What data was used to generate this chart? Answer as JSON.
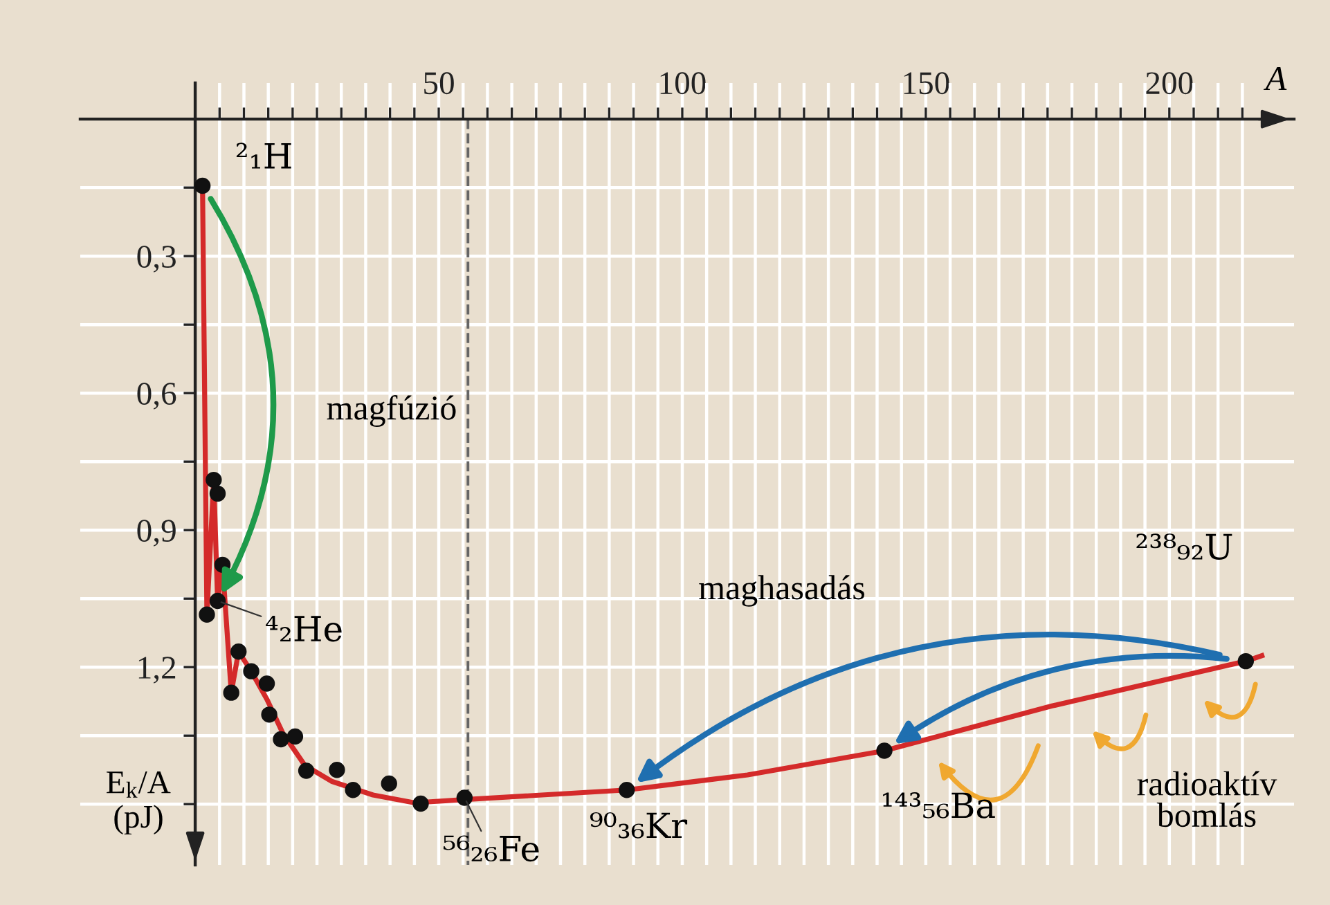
{
  "chart_data": {
    "type": "line",
    "xlabel": "A",
    "ylabel": "E$_{k}$/A\n(pJ)",
    "xlim": [
      -23.6,
      225.6
    ],
    "ylim": [
      1.633,
      -0.079
    ],
    "xticks": [
      {
        "value": 5,
        "label": null
      },
      {
        "value": 10,
        "label": null
      },
      {
        "value": 15,
        "label": null
      },
      {
        "value": 20,
        "label": null
      },
      {
        "value": 25,
        "label": null
      },
      {
        "value": 30,
        "label": null
      },
      {
        "value": 35,
        "label": null
      },
      {
        "value": 40,
        "label": null
      },
      {
        "value": 45,
        "label": null
      },
      50,
      {
        "value": 55,
        "label": null
      },
      {
        "value": 60,
        "label": null
      },
      {
        "value": 65,
        "label": null
      },
      {
        "value": 70,
        "label": null
      },
      {
        "value": 75,
        "label": null
      },
      {
        "value": 80,
        "label": null
      },
      {
        "value": 85,
        "label": null
      },
      {
        "value": 90,
        "label": null
      },
      {
        "value": 95,
        "label": null
      },
      100,
      {
        "value": 105,
        "label": null
      },
      {
        "value": 110,
        "label": null
      },
      {
        "value": 115,
        "label": null
      },
      {
        "value": 120,
        "label": null
      },
      {
        "value": 125,
        "label": null
      },
      {
        "value": 130,
        "label": null
      },
      {
        "value": 135,
        "label": null
      },
      {
        "value": 140,
        "label": null
      },
      {
        "value": 145,
        "label": null
      },
      150,
      {
        "value": 155,
        "label": null
      },
      {
        "value": 160,
        "label": null
      },
      {
        "value": 165,
        "label": null
      },
      {
        "value": 170,
        "label": null
      },
      {
        "value": 175,
        "label": null
      },
      {
        "value": 180,
        "label": null
      },
      {
        "value": 185,
        "label": null
      },
      {
        "value": 190,
        "label": null
      },
      {
        "value": 195,
        "label": null
      },
      200,
      {
        "value": 205,
        "label": null
      },
      {
        "value": 210,
        "label": null
      },
      {
        "value": 215,
        "label": null
      }
    ],
    "yticks": [
      {
        "value": 0.15,
        "label": null
      },
      {
        "value": 0.3,
        "label": "0,3"
      },
      {
        "value": 0.45,
        "label": null
      },
      {
        "value": 0.6,
        "label": "0,6"
      },
      {
        "value": 0.75,
        "label": null
      },
      {
        "value": 0.9,
        "label": "0,9"
      },
      {
        "value": 1.05,
        "label": null
      },
      {
        "value": 1.2,
        "label": "1,2"
      },
      {
        "value": 1.35,
        "label": null
      },
      {
        "value": 1.5,
        "label": null
      }
    ],
    "grid": true,
    "series": [
      {
        "color": "#d42a2a",
        "marker": "none",
        "line_style": "solid",
        "x": [
          1.5,
          2.4,
          3.8,
          4.6,
          5.6,
          7.4,
          8.9,
          11.5,
          14.7,
          18,
          22.5,
          28,
          36.5,
          45,
          55.3,
          88.6,
          113.4,
          141.5,
          175.9,
          215.7,
          219
        ],
        "values": [
          0.146,
          1.085,
          0.79,
          1.055,
          0.976,
          1.256,
          1.166,
          1.209,
          1.27,
          1.345,
          1.415,
          1.45,
          1.48,
          1.497,
          1.49,
          1.469,
          1.436,
          1.383,
          1.285,
          1.187,
          1.175
        ]
      },
      {
        "type": "scatter",
        "color": "#111111",
        "marker": "circle",
        "x": [
          1.5,
          3.8,
          4.6,
          5.6,
          4.6,
          2.4,
          7.4,
          8.9,
          11.5,
          14.7,
          15.2,
          17.6,
          20.5,
          22.8,
          29.1,
          32.4,
          39.8,
          46.3,
          55.3,
          88.6,
          141.5,
          215.7
        ],
        "values": [
          0.146,
          0.79,
          0.82,
          0.976,
          1.055,
          1.085,
          1.256,
          1.166,
          1.209,
          1.236,
          1.304,
          1.358,
          1.352,
          1.427,
          1.425,
          1.469,
          1.455,
          1.499,
          1.486,
          1.469,
          1.383,
          1.187
        ]
      }
    ],
    "ref_lines": [
      {
        "axis": "x",
        "value": 56,
        "color": "#666666",
        "line_style": "dashed"
      }
    ],
    "annotations": [
      {
        "text": "²₁H",
        "x": 1.5,
        "y": 0.146
      },
      {
        "text": "⁴₂He",
        "x": 4.6,
        "y": 1.055
      },
      {
        "text": "⁵⁶₂₆Fe",
        "x": 55.3,
        "y": 1.486
      },
      {
        "text": "⁹⁰₃₆Kr",
        "x": 88.6,
        "y": 1.469
      },
      {
        "text": "¹⁴³₅₆Ba",
        "x": 141.5,
        "y": 1.383
      },
      {
        "text": "²³⁸₉₂U",
        "x": 215.7,
        "y": 1.187
      },
      "magfúzió",
      "maghasadás",
      "radioaktív\nbomlás"
    ]
  }
}
